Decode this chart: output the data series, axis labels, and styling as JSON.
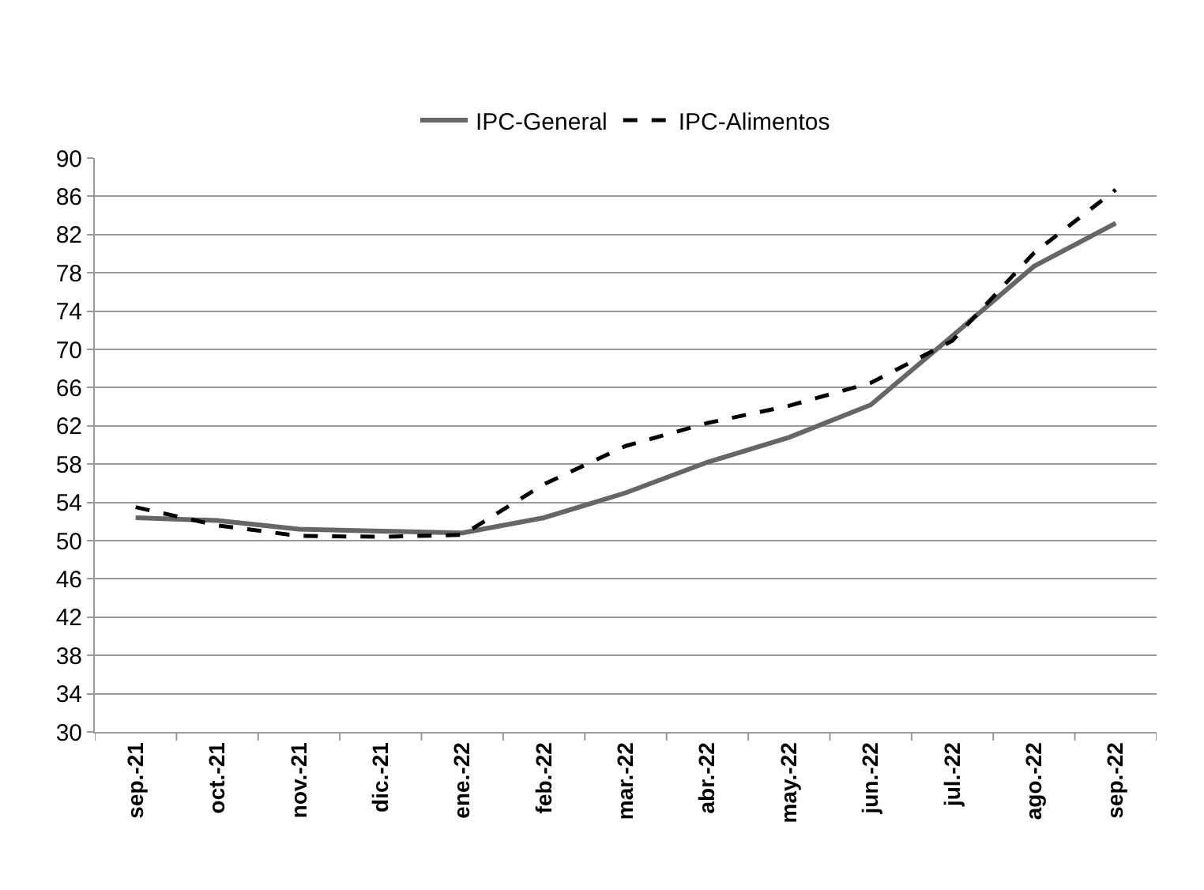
{
  "chart_data": {
    "type": "line",
    "categories": [
      "sep.-21",
      "oct.-21",
      "nov.-21",
      "dic.-21",
      "ene.-22",
      "feb.-22",
      "mar.-22",
      "abr.-22",
      "may.-22",
      "jun.-22",
      "jul.-22",
      "ago.-22",
      "sep.-22"
    ],
    "series": [
      {
        "name": "IPC-General",
        "color": "#666666",
        "line_style": "solid",
        "values": [
          52.4,
          52.1,
          51.2,
          51.0,
          50.8,
          52.4,
          55.0,
          58.2,
          60.8,
          64.2,
          71.4,
          78.7,
          83.2
        ]
      },
      {
        "name": "IPC-Alimentos",
        "color": "#000000",
        "line_style": "dashed",
        "values": [
          53.5,
          51.6,
          50.5,
          50.4,
          50.6,
          55.9,
          59.9,
          62.3,
          64.1,
          66.5,
          70.9,
          80.1,
          86.7
        ]
      }
    ],
    "ylim": [
      30,
      90
    ],
    "yticks": [
      30,
      34,
      38,
      42,
      46,
      50,
      54,
      58,
      62,
      66,
      70,
      74,
      78,
      82,
      86,
      90
    ],
    "grid": "y",
    "legend": "top",
    "marker": "none"
  }
}
